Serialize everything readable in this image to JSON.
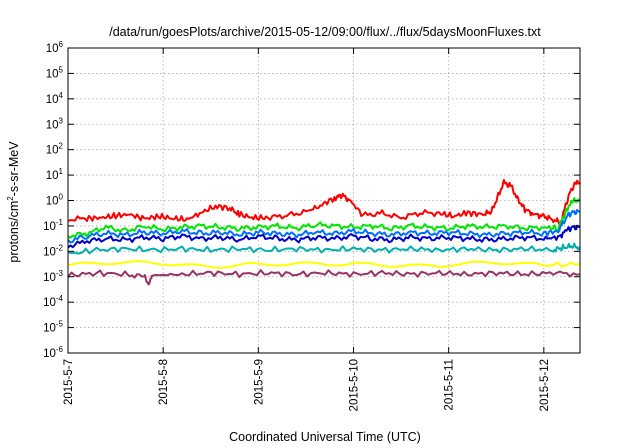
{
  "chart_data": {
    "type": "line",
    "title": "/data/run/goesPlots/archive/2015-05-12/09:00/flux/../flux/5daysMoonFluxes.txt",
    "xlabel": "Coordinated Universal Time (UTC)",
    "ylabel_parts": [
      "protons/cm",
      "2",
      "-s-sr-MeV"
    ],
    "y_scale": "log",
    "ylim_exp": [
      -6,
      6
    ],
    "y_ticks": [
      {
        "base": "10",
        "exp": "-6",
        "value_exp": -6
      },
      {
        "base": "10",
        "exp": "-5",
        "value_exp": -5
      },
      {
        "base": "10",
        "exp": "-4",
        "value_exp": -4
      },
      {
        "base": "10",
        "exp": "-3",
        "value_exp": -3
      },
      {
        "base": "10",
        "exp": "-2",
        "value_exp": -2
      },
      {
        "base": "10",
        "exp": "-1",
        "value_exp": -1
      },
      {
        "base": "10",
        "exp": "0",
        "value_exp": 0
      },
      {
        "base": "10",
        "exp": "1",
        "value_exp": 1
      },
      {
        "base": "10",
        "exp": "2",
        "value_exp": 2
      },
      {
        "base": "10",
        "exp": "3",
        "value_exp": 3
      },
      {
        "base": "10",
        "exp": "4",
        "value_exp": 4
      },
      {
        "base": "10",
        "exp": "5",
        "value_exp": 5
      },
      {
        "base": "10",
        "exp": "6",
        "value_exp": 6
      }
    ],
    "x_ticks": [
      "2015-5-7",
      "2015-5-8",
      "2015-5-9",
      "2015-5-10",
      "2015-5-11",
      "2015-5-12"
    ],
    "x_range_days": [
      0,
      5.38
    ],
    "grid": true,
    "series": [
      {
        "color": "#ff0000",
        "points": [
          [
            0,
            -0.75
          ],
          [
            0.2,
            -0.7
          ],
          [
            0.35,
            -0.68
          ],
          [
            0.5,
            -0.6
          ],
          [
            0.65,
            -0.55
          ],
          [
            0.8,
            -0.72
          ],
          [
            0.95,
            -0.62
          ],
          [
            1.1,
            -0.7
          ],
          [
            1.25,
            -0.75
          ],
          [
            1.4,
            -0.48
          ],
          [
            1.55,
            -0.22
          ],
          [
            1.7,
            -0.3
          ],
          [
            1.8,
            -0.55
          ],
          [
            1.95,
            -0.68
          ],
          [
            2.1,
            -0.68
          ],
          [
            2.3,
            -0.58
          ],
          [
            2.5,
            -0.45
          ],
          [
            2.65,
            -0.2
          ],
          [
            2.8,
            0.1
          ],
          [
            2.88,
            0.2
          ],
          [
            2.95,
            0.05
          ],
          [
            3.1,
            -0.58
          ],
          [
            3.3,
            -0.5
          ],
          [
            3.5,
            -0.68
          ],
          [
            3.7,
            -0.48
          ],
          [
            3.9,
            -0.5
          ],
          [
            4.05,
            -0.62
          ],
          [
            4.2,
            -0.48
          ],
          [
            4.35,
            -0.55
          ],
          [
            4.45,
            -0.45
          ],
          [
            4.52,
            0.2
          ],
          [
            4.58,
            0.7
          ],
          [
            4.65,
            0.6
          ],
          [
            4.72,
            0.1
          ],
          [
            4.8,
            -0.35
          ],
          [
            4.9,
            -0.55
          ],
          [
            5.0,
            -0.62
          ],
          [
            5.1,
            -0.75
          ],
          [
            5.18,
            -0.88
          ],
          [
            5.22,
            -0.3
          ],
          [
            5.28,
            0.4
          ],
          [
            5.34,
            0.7
          ],
          [
            5.38,
            0.65
          ]
        ]
      },
      {
        "color": "#00e600",
        "points": [
          [
            0,
            -1.4
          ],
          [
            0.2,
            -1.3
          ],
          [
            0.4,
            -1.05
          ],
          [
            0.6,
            -1.2
          ],
          [
            0.8,
            -1.0
          ],
          [
            1.0,
            -1.15
          ],
          [
            1.2,
            -1.05
          ],
          [
            1.4,
            -1.0
          ],
          [
            1.6,
            -1.05
          ],
          [
            1.8,
            -1.1
          ],
          [
            2.0,
            -1.05
          ],
          [
            2.2,
            -1.0
          ],
          [
            2.4,
            -1.1
          ],
          [
            2.6,
            -0.95
          ],
          [
            2.8,
            -1.0
          ],
          [
            3.0,
            -1.05
          ],
          [
            3.2,
            -1.0
          ],
          [
            3.4,
            -1.1
          ],
          [
            3.6,
            -1.0
          ],
          [
            3.8,
            -1.05
          ],
          [
            4.0,
            -1.1
          ],
          [
            4.2,
            -1.0
          ],
          [
            4.4,
            -1.05
          ],
          [
            4.6,
            -1.0
          ],
          [
            4.8,
            -1.1
          ],
          [
            5.0,
            -1.05
          ],
          [
            5.15,
            -1.1
          ],
          [
            5.25,
            -0.3
          ],
          [
            5.3,
            -0.05
          ],
          [
            5.38,
            0.05
          ]
        ]
      },
      {
        "color": "#0000cc",
        "points": [
          [
            0,
            -1.8
          ],
          [
            0.2,
            -1.6
          ],
          [
            0.4,
            -1.5
          ],
          [
            0.6,
            -1.55
          ],
          [
            0.8,
            -1.45
          ],
          [
            1.0,
            -1.5
          ],
          [
            1.2,
            -1.4
          ],
          [
            1.4,
            -1.5
          ],
          [
            1.6,
            -1.45
          ],
          [
            1.8,
            -1.55
          ],
          [
            2.0,
            -1.4
          ],
          [
            2.2,
            -1.5
          ],
          [
            2.4,
            -1.55
          ],
          [
            2.6,
            -1.45
          ],
          [
            2.8,
            -1.5
          ],
          [
            3.0,
            -1.4
          ],
          [
            3.2,
            -1.5
          ],
          [
            3.4,
            -1.55
          ],
          [
            3.6,
            -1.45
          ],
          [
            3.8,
            -1.5
          ],
          [
            4.0,
            -1.45
          ],
          [
            4.2,
            -1.5
          ],
          [
            4.4,
            -1.55
          ],
          [
            4.6,
            -1.5
          ],
          [
            4.8,
            -1.45
          ],
          [
            5.0,
            -1.5
          ],
          [
            5.15,
            -1.45
          ],
          [
            5.25,
            -1.15
          ],
          [
            5.3,
            -1.05
          ],
          [
            5.38,
            -1.05
          ]
        ]
      },
      {
        "color": "#0070ff",
        "points": [
          [
            0,
            -1.6
          ],
          [
            0.2,
            -1.4
          ],
          [
            0.4,
            -1.3
          ],
          [
            0.6,
            -1.35
          ],
          [
            0.8,
            -1.25
          ],
          [
            1.0,
            -1.3
          ],
          [
            1.2,
            -1.2
          ],
          [
            1.4,
            -1.3
          ],
          [
            1.6,
            -1.25
          ],
          [
            1.8,
            -1.35
          ],
          [
            2.0,
            -1.25
          ],
          [
            2.2,
            -1.3
          ],
          [
            2.4,
            -1.35
          ],
          [
            2.6,
            -1.25
          ],
          [
            2.8,
            -1.3
          ],
          [
            3.0,
            -1.2
          ],
          [
            3.2,
            -1.3
          ],
          [
            3.4,
            -1.35
          ],
          [
            3.6,
            -1.25
          ],
          [
            3.8,
            -1.3
          ],
          [
            4.0,
            -1.25
          ],
          [
            4.2,
            -1.3
          ],
          [
            4.4,
            -1.35
          ],
          [
            4.6,
            -1.3
          ],
          [
            4.8,
            -1.25
          ],
          [
            5.0,
            -1.3
          ],
          [
            5.15,
            -1.2
          ],
          [
            5.25,
            -0.6
          ],
          [
            5.3,
            -0.45
          ],
          [
            5.38,
            -0.45
          ]
        ]
      },
      {
        "color": "#00b0b0",
        "points": [
          [
            0,
            -2.1
          ],
          [
            0.3,
            -1.95
          ],
          [
            0.6,
            -1.9
          ],
          [
            0.9,
            -1.95
          ],
          [
            1.2,
            -1.9
          ],
          [
            1.5,
            -1.95
          ],
          [
            1.8,
            -1.9
          ],
          [
            2.1,
            -1.95
          ],
          [
            2.4,
            -1.9
          ],
          [
            2.7,
            -1.95
          ],
          [
            3.0,
            -1.9
          ],
          [
            3.3,
            -1.95
          ],
          [
            3.6,
            -1.9
          ],
          [
            3.9,
            -1.95
          ],
          [
            4.2,
            -1.9
          ],
          [
            4.5,
            -1.95
          ],
          [
            4.8,
            -1.9
          ],
          [
            5.1,
            -1.95
          ],
          [
            5.2,
            -1.85
          ],
          [
            5.3,
            -1.8
          ],
          [
            5.38,
            -1.85
          ]
        ]
      },
      {
        "color": "#ffff00",
        "points": [
          [
            0,
            -2.55
          ],
          [
            0.5,
            -2.5
          ],
          [
            1.0,
            -2.5
          ],
          [
            1.5,
            -2.55
          ],
          [
            2.0,
            -2.5
          ],
          [
            2.5,
            -2.55
          ],
          [
            3.0,
            -2.5
          ],
          [
            3.5,
            -2.5
          ],
          [
            4.0,
            -2.55
          ],
          [
            4.5,
            -2.5
          ],
          [
            5.0,
            -2.55
          ],
          [
            5.38,
            -2.5
          ]
        ]
      },
      {
        "color": "#993366",
        "points": [
          [
            0,
            -2.95
          ],
          [
            0.3,
            -2.85
          ],
          [
            0.6,
            -2.9
          ],
          [
            0.8,
            -3.0
          ],
          [
            0.85,
            -3.3
          ],
          [
            0.88,
            -2.95
          ],
          [
            1.2,
            -2.9
          ],
          [
            1.5,
            -2.85
          ],
          [
            1.8,
            -2.9
          ],
          [
            2.1,
            -2.85
          ],
          [
            2.4,
            -2.9
          ],
          [
            2.7,
            -2.85
          ],
          [
            3.0,
            -2.9
          ],
          [
            3.3,
            -2.85
          ],
          [
            3.6,
            -2.9
          ],
          [
            3.9,
            -2.85
          ],
          [
            4.2,
            -2.9
          ],
          [
            4.5,
            -2.85
          ],
          [
            4.8,
            -2.9
          ],
          [
            5.1,
            -2.85
          ],
          [
            5.38,
            -2.9
          ]
        ]
      }
    ]
  }
}
